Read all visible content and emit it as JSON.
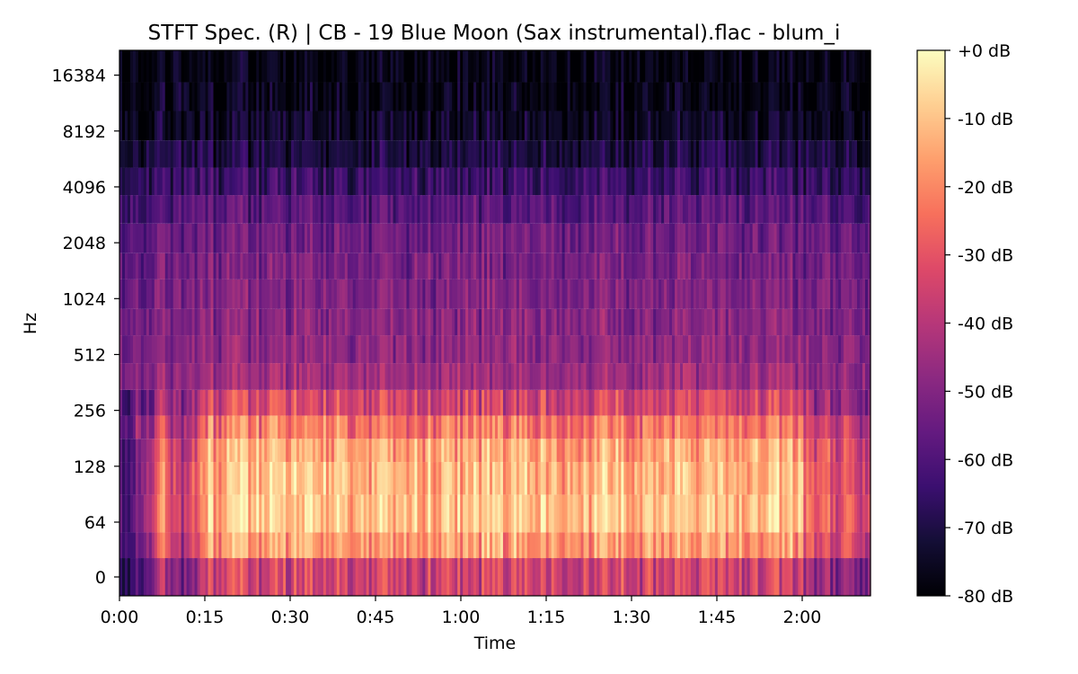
{
  "chart_data": {
    "type": "heatmap",
    "title": "STFT Spec. (R) | CB - 19 Blue Moon (Sax instrumental).flac - blum_i",
    "xlabel": "Time",
    "ylabel": "Hz",
    "y_scale": "log",
    "x_range_seconds": [
      0,
      132
    ],
    "x_tick_seconds": [
      0,
      15,
      30,
      45,
      60,
      75,
      90,
      105,
      120
    ],
    "x_tick_labels": [
      "0:00",
      "0:15",
      "0:30",
      "0:45",
      "1:00",
      "1:15",
      "1:30",
      "1:45",
      "2:00"
    ],
    "y_tick_hz": [
      0,
      64,
      128,
      256,
      512,
      1024,
      2048,
      4096,
      8192,
      16384
    ],
    "y_tick_labels": [
      "0",
      "64",
      "128",
      "256",
      "512",
      "1024",
      "2048",
      "4096",
      "8192",
      "16384"
    ],
    "colorbar": {
      "range_db": [
        -80,
        0
      ],
      "tick_db": [
        0,
        -10,
        -20,
        -30,
        -40,
        -50,
        -60,
        -70,
        -80
      ],
      "tick_labels": [
        "+0 dB",
        "-10 dB",
        "-20 dB",
        "-30 dB",
        "-40 dB",
        "-50 dB",
        "-60 dB",
        "-70 dB",
        "-80 dB"
      ],
      "colormap": "magma"
    },
    "colors": {
      "magma_stops": [
        "#000004",
        "#140e36",
        "#3b0f70",
        "#641a80",
        "#8c2981",
        "#b73779",
        "#de4968",
        "#f7705c",
        "#fe9f6d",
        "#fecf92",
        "#fcfdbf"
      ]
    }
  }
}
